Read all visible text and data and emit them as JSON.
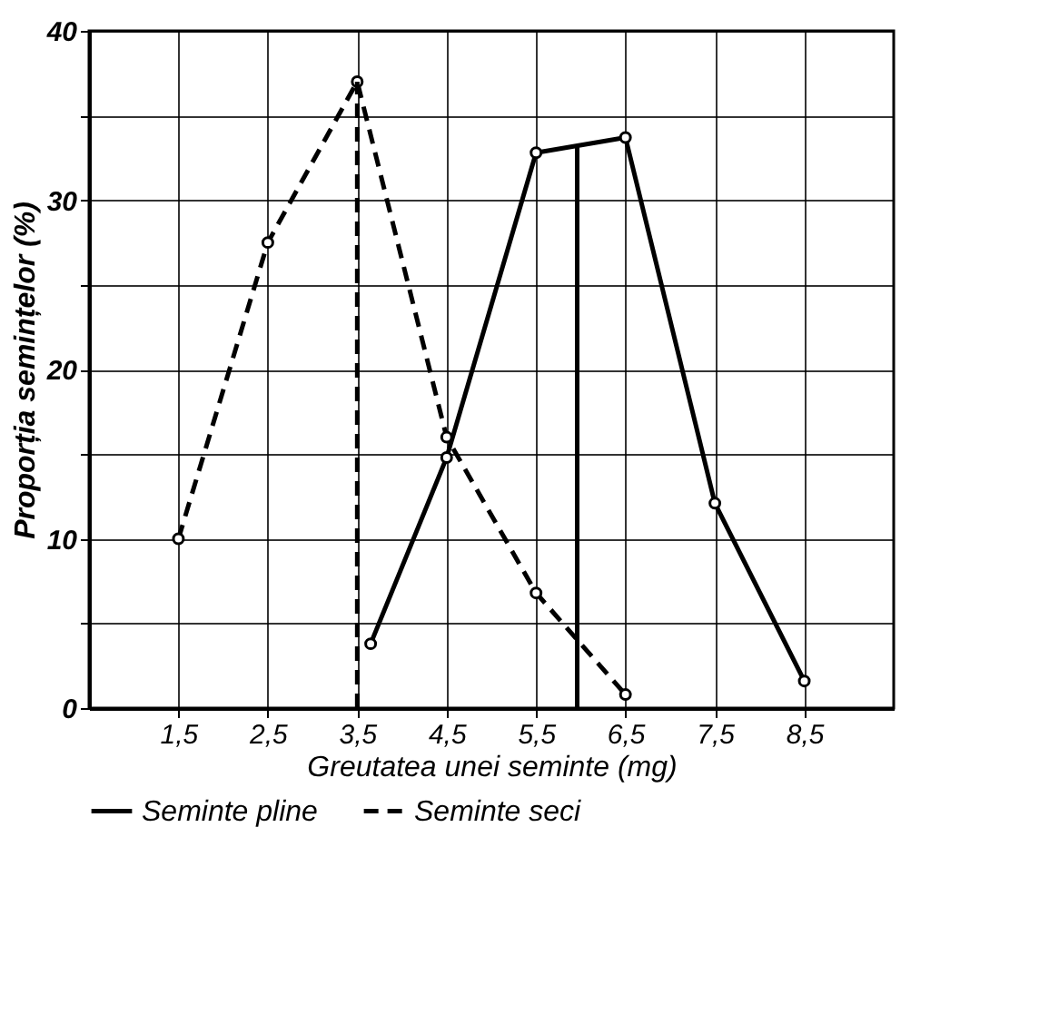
{
  "chart_data": {
    "type": "line",
    "xlabel": "Greutatea unei seminte (mg)",
    "ylabel": "Proporția semințelor (%)",
    "xlim": [
      0.5,
      9.5
    ],
    "xticks": [
      {
        "value": 1.5,
        "label": "1,5"
      },
      {
        "value": 2.5,
        "label": "2,5"
      },
      {
        "value": 3.5,
        "label": "3,5"
      },
      {
        "value": 4.5,
        "label": "4,5"
      },
      {
        "value": 5.5,
        "label": "5,5"
      },
      {
        "value": 6.5,
        "label": "6,5"
      },
      {
        "value": 7.5,
        "label": "7,5"
      },
      {
        "value": 8.5,
        "label": "8,5"
      }
    ],
    "ylim": [
      0,
      40
    ],
    "yticks": [
      0,
      {
        "value": 5,
        "label": null
      },
      10,
      {
        "value": 15,
        "label": null
      },
      20,
      {
        "value": 25,
        "label": null
      },
      30,
      {
        "value": 35,
        "label": null
      },
      40
    ],
    "grid": true,
    "legend": "bottom",
    "marker": "circle",
    "series": [
      {
        "name": "Seminte pline",
        "color": "#000000",
        "line_style": "solid",
        "x": [
          3.65,
          4.5,
          5.5,
          6.5,
          7.5,
          8.5
        ],
        "values": [
          3.8,
          14.8,
          32.8,
          33.7,
          12.1,
          1.6
        ]
      },
      {
        "name": "Seminte seci",
        "color": "#000000",
        "line_style": "dashed",
        "x": [
          1.5,
          2.5,
          3.5,
          4.5,
          5.5,
          6.5
        ],
        "values": [
          10,
          27.5,
          37,
          16,
          6.8,
          0.8
        ]
      },
      {
        "color": "#000000",
        "line_style": "solid",
        "marker": "none",
        "x": [
          5.96,
          5.96
        ],
        "values": [
          0,
          33.3
        ]
      },
      {
        "color": "#000000",
        "line_style": "dashed",
        "marker": "none",
        "x": [
          3.5,
          3.5
        ],
        "values": [
          0,
          37
        ]
      }
    ]
  }
}
